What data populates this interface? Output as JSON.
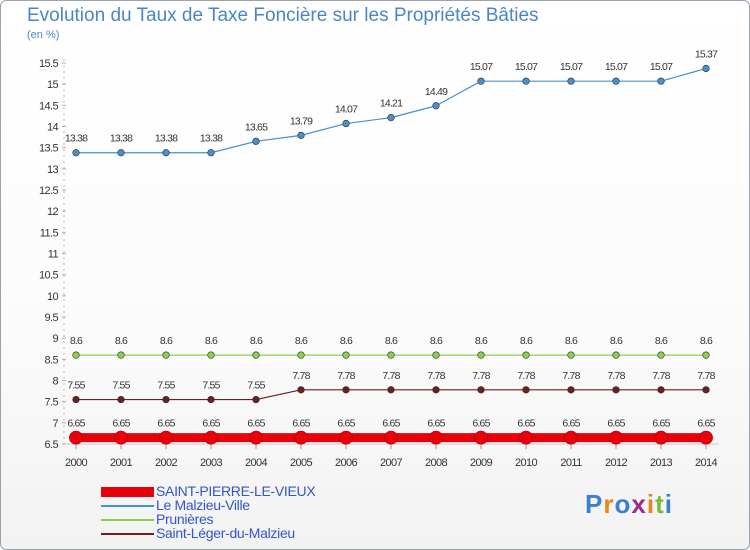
{
  "chart_data": {
    "type": "line",
    "title": "Evolution du Taux de Taxe Foncière sur les Propriétés Bâties",
    "ylabel": "(en %)",
    "xlabel": "",
    "ylim": [
      6.5,
      15.5
    ],
    "yticks": [
      "6.5",
      "7",
      "7.5",
      "8",
      "8.5",
      "9",
      "9.5",
      "10",
      "10.5",
      "11",
      "11.5",
      "12",
      "12.5",
      "13",
      "13.5",
      "14",
      "14.5",
      "15",
      "15.5"
    ],
    "x": [
      "2000",
      "2001",
      "2002",
      "2003",
      "2004",
      "2005",
      "2006",
      "2007",
      "2008",
      "2009",
      "2010",
      "2011",
      "2012",
      "2013",
      "2014"
    ],
    "series": [
      {
        "name": "SAINT-PIERRE-LE-VIEUX",
        "color": "#e8000b",
        "values": [
          6.65,
          6.65,
          6.65,
          6.65,
          6.65,
          6.65,
          6.65,
          6.65,
          6.65,
          6.65,
          6.65,
          6.65,
          6.65,
          6.65,
          6.65
        ],
        "labels": [
          "6.65",
          "6.65",
          "6.65",
          "6.65",
          "6.65",
          "6.65",
          "6.65",
          "6.65",
          "6.65",
          "6.65",
          "6.65",
          "6.65",
          "6.65",
          "6.65",
          "6.65"
        ]
      },
      {
        "name": "Le Malzieu-Ville",
        "color": "#4a90c8",
        "values": [
          13.38,
          13.38,
          13.38,
          13.38,
          13.65,
          13.79,
          14.07,
          14.21,
          14.49,
          15.07,
          15.07,
          15.07,
          15.07,
          15.07,
          15.37
        ],
        "labels": [
          "13.38",
          "13.38",
          "13.38",
          "13.38",
          "13.65",
          "13.79",
          "14.07",
          "14.21",
          "14.49",
          "15.07",
          "15.07",
          "15.07",
          "15.07",
          "15.07",
          "15.37"
        ]
      },
      {
        "name": "Prunières",
        "color": "#8ccf4a",
        "values": [
          8.6,
          8.6,
          8.6,
          8.6,
          8.6,
          8.6,
          8.6,
          8.6,
          8.6,
          8.6,
          8.6,
          8.6,
          8.6,
          8.6,
          8.6
        ],
        "labels": [
          "8.6",
          "8.6",
          "8.6",
          "8.6",
          "8.6",
          "8.6",
          "8.6",
          "8.6",
          "8.6",
          "8.6",
          "8.6",
          "8.6",
          "8.6",
          "8.6",
          "8.6"
        ]
      },
      {
        "name": "Saint-Léger-du-Malzieu",
        "color": "#6b1f1f",
        "values": [
          7.55,
          7.55,
          7.55,
          7.55,
          7.55,
          7.78,
          7.78,
          7.78,
          7.78,
          7.78,
          7.78,
          7.78,
          7.78,
          7.78,
          7.78
        ],
        "labels": [
          "7.55",
          "7.55",
          "7.55",
          "7.55",
          "7.55",
          "7.78",
          "7.78",
          "7.78",
          "7.78",
          "7.78",
          "7.78",
          "7.78",
          "7.78",
          "7.78",
          "7.78"
        ]
      }
    ],
    "legend_position": "bottom-left"
  },
  "brand": {
    "letters": [
      "P",
      "r",
      "o",
      "x",
      "i",
      "t",
      "i"
    ],
    "colors": [
      "#3a7fd0",
      "#e8861a",
      "#3a7fd0",
      "#9c2b8a",
      "#e8861a",
      "#7cba3a",
      "#3a7fd0"
    ]
  }
}
